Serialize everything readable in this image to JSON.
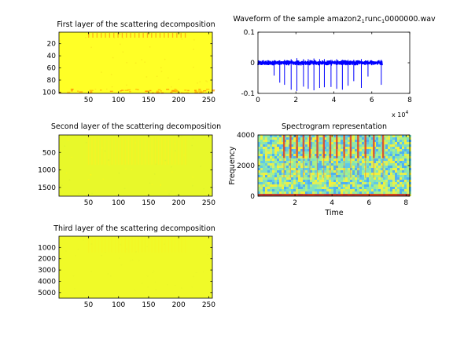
{
  "figure": {
    "background": "#ffffff",
    "heatmap_base_color": "#ffff26",
    "waveform_color": "#0000ff"
  },
  "chart_data": [
    {
      "type": "heatmap",
      "title": "First layer of the scattering decomposition",
      "xlabel": "",
      "ylabel": "",
      "xlim": [
        1,
        256
      ],
      "ylim": [
        1,
        102
      ],
      "y_reversed": true,
      "xticks": [
        50,
        100,
        150,
        200,
        250
      ],
      "yticks": [
        20,
        40,
        60,
        80,
        100
      ],
      "colormap": "jet",
      "dominant_value": "mid-high (yellow)",
      "features": [
        "periodic vertical streaks near top rows (y<10) at x≈50–210",
        "orange speckles near bottom rows (y≈95–102)"
      ]
    },
    {
      "type": "heatmap",
      "title": "Second layer of the scattering decomposition",
      "xlabel": "",
      "ylabel": "",
      "xlim": [
        1,
        256
      ],
      "ylim": [
        1,
        1750
      ],
      "y_reversed": true,
      "xticks": [
        50,
        100,
        150,
        200,
        250
      ],
      "yticks": [
        500,
        1000,
        1500
      ],
      "colormap": "jet",
      "dominant_value": "mid (yellow-green)",
      "features": [
        "faint vertical stripes at x≈50–210 in upper half"
      ]
    },
    {
      "type": "heatmap",
      "title": "Third layer of the scattering decomposition",
      "xlabel": "",
      "ylabel": "",
      "xlim": [
        1,
        256
      ],
      "ylim": [
        1,
        5500
      ],
      "y_reversed": true,
      "xticks": [
        50,
        100,
        150,
        200,
        250
      ],
      "yticks": [
        1000,
        2000,
        3000,
        4000,
        5000
      ],
      "colormap": "jet",
      "dominant_value": "mid (yellow)",
      "features": [
        "very faint vertical texture"
      ]
    },
    {
      "type": "line",
      "title": "Waveform of the sample amazon2_runc_0000000.wav",
      "title_prefix": "Waveform of the sample amazon2",
      "title_sub1": "1",
      "title_mid": "runc",
      "title_sub2": "1",
      "title_suffix": "0000000.wav",
      "xlabel": "",
      "ylabel": "",
      "xlim": [
        0,
        80000
      ],
      "ylim": [
        -0.1,
        0.1
      ],
      "xticks": [
        0,
        2,
        4,
        6,
        8
      ],
      "yticks": [
        0.1,
        0,
        -0.1
      ],
      "exponent_label": "x 10",
      "exponent_power": "4",
      "series": [
        {
          "baseline_noise_amplitude": 0.006,
          "signal_end": 65500,
          "spikes": [
            {
              "x": 8500,
              "ymin": -0.042,
              "ymax": 0.006
            },
            {
              "x": 11500,
              "ymin": -0.065,
              "ymax": 0.008
            },
            {
              "x": 14000,
              "ymin": -0.072,
              "ymax": 0.01
            },
            {
              "x": 17500,
              "ymin": -0.088,
              "ymax": 0.012
            },
            {
              "x": 20500,
              "ymin": -0.092,
              "ymax": 0.015
            },
            {
              "x": 24000,
              "ymin": -0.078,
              "ymax": 0.012
            },
            {
              "x": 26500,
              "ymin": -0.085,
              "ymax": 0.012
            },
            {
              "x": 29500,
              "ymin": -0.09,
              "ymax": 0.014
            },
            {
              "x": 32500,
              "ymin": -0.082,
              "ymax": 0.012
            },
            {
              "x": 35000,
              "ymin": -0.08,
              "ymax": 0.012
            },
            {
              "x": 38500,
              "ymin": -0.079,
              "ymax": 0.01
            },
            {
              "x": 41500,
              "ymin": -0.085,
              "ymax": 0.012
            },
            {
              "x": 44500,
              "ymin": -0.088,
              "ymax": 0.01
            },
            {
              "x": 47500,
              "ymin": -0.075,
              "ymax": 0.01
            },
            {
              "x": 50500,
              "ymin": -0.06,
              "ymax": 0.01
            },
            {
              "x": 54500,
              "ymin": -0.082,
              "ymax": 0.012
            },
            {
              "x": 58000,
              "ymin": -0.045,
              "ymax": 0.008
            },
            {
              "x": 65000,
              "ymin": -0.072,
              "ymax": 0.01
            }
          ]
        }
      ]
    },
    {
      "type": "heatmap",
      "title": "Spectrogram representation",
      "xlabel": "Time",
      "ylabel": "Frequency",
      "xlim": [
        0,
        8.2
      ],
      "ylim": [
        0,
        4000
      ],
      "xticks": [
        2,
        4,
        6,
        8
      ],
      "yticks": [
        0,
        2000,
        4000
      ],
      "colormap": "jet",
      "features": [
        "cyan/yellow noise background",
        "red harmonic vertical bands at t≈1.4–6.8 above 2500 Hz",
        "red band near 0 Hz"
      ],
      "event_times": [
        1.4,
        1.75,
        2.1,
        2.45,
        2.8,
        3.2,
        3.55,
        3.9,
        4.25,
        4.65,
        5.0,
        5.4,
        5.8,
        6.25,
        6.75
      ]
    }
  ]
}
